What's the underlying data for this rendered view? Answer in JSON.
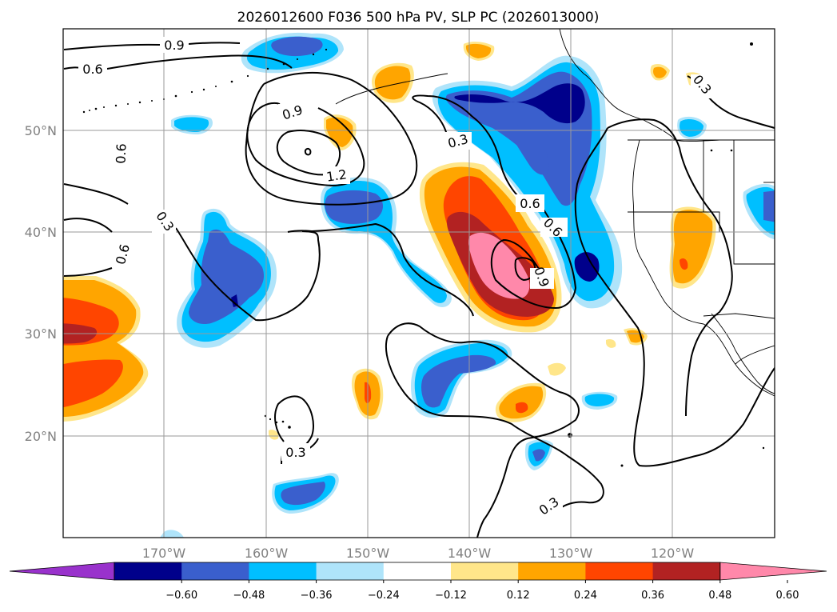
{
  "title": "2026012600 F036 500 hPa PV, SLP PC (2026013000)",
  "lat_labels": [
    "50°N",
    "40°N",
    "30°N",
    "20°N"
  ],
  "lon_labels": [
    "170°W",
    "160°W",
    "150°W",
    "140°W",
    "130°W",
    "120°W"
  ],
  "colorbar": {
    "ticks": [
      "−0.60",
      "−0.48",
      "−0.36",
      "−0.24",
      "−0.12",
      "0.12",
      "0.24",
      "0.36",
      "0.48",
      "0.60"
    ],
    "colors": [
      "#9932cc",
      "#00008b",
      "#3a5fcd",
      "#00bfff",
      "#afe4fa",
      "#ffffff",
      "#ffe68a",
      "#ffa500",
      "#ff4500",
      "#b22222",
      "#ff88aa"
    ]
  },
  "contour_labels": [
    "0.9",
    "0.6",
    "0.6",
    "0.9",
    "1.2",
    "0.3",
    "0.6",
    "0.6",
    "0.9",
    "0.3",
    "0.6",
    "0.3",
    "0.3",
    "0.3"
  ],
  "chart_data": {
    "type": "heatmap",
    "title": "2026012600 F036 500 hPa PV, SLP PC (2026013000)",
    "xlabel": "",
    "ylabel": "",
    "xlim": [
      "180°W",
      "110°W"
    ],
    "ylim": [
      "10°N",
      "60°N"
    ],
    "shaded_field": "500 hPa PV",
    "contour_field": "SLP PC",
    "contour_levels": [
      0.3,
      0.6,
      0.9,
      1.2
    ],
    "colorbar_ticks": [
      -0.6,
      -0.48,
      -0.36,
      -0.24,
      -0.12,
      0.12,
      0.24,
      0.36,
      0.48,
      0.6
    ],
    "colorbar_extend": "both"
  }
}
